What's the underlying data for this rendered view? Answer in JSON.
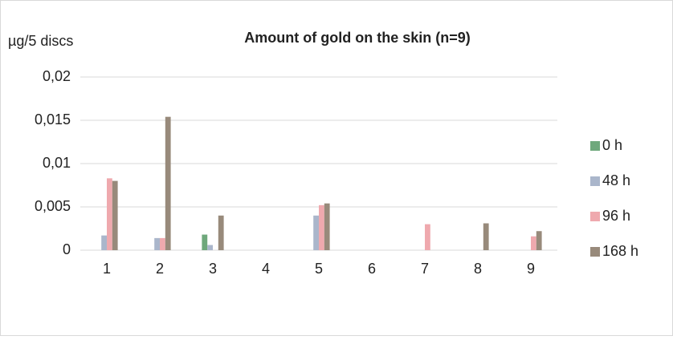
{
  "chart_data": {
    "type": "bar",
    "title": "Amount of gold on the skin (n=9)",
    "y_label": "µg/5 discs",
    "categories": [
      "1",
      "2",
      "3",
      "4",
      "5",
      "6",
      "7",
      "8",
      "9"
    ],
    "series": [
      {
        "name": "0 h",
        "color": "#6fa87c",
        "values": [
          0,
          0,
          0.0018,
          0,
          0,
          0,
          0,
          0,
          0
        ]
      },
      {
        "name": "48 h",
        "color": "#aab6cb",
        "values": [
          0.0017,
          0.0014,
          0.0006,
          0,
          0.004,
          0,
          0,
          0,
          0
        ]
      },
      {
        "name": "96 h",
        "color": "#efa9ae",
        "values": [
          0.0083,
          0.0014,
          0,
          0,
          0.0052,
          0,
          0.003,
          0,
          0.0016
        ]
      },
      {
        "name": "168 h",
        "color": "#988a7b",
        "values": [
          0.008,
          0.0154,
          0.004,
          0,
          0.0054,
          0,
          0,
          0.0031,
          0.0022
        ]
      }
    ],
    "ylim": [
      0,
      0.02
    ],
    "yticks": [
      0,
      {
        "value": 0.005,
        "label": "0,005"
      },
      {
        "value": 0.01,
        "label": "0,01"
      },
      {
        "value": 0.015,
        "label": "0,015"
      },
      {
        "value": 0.02,
        "label": "0,02"
      }
    ],
    "grid": true,
    "legend": "right"
  }
}
